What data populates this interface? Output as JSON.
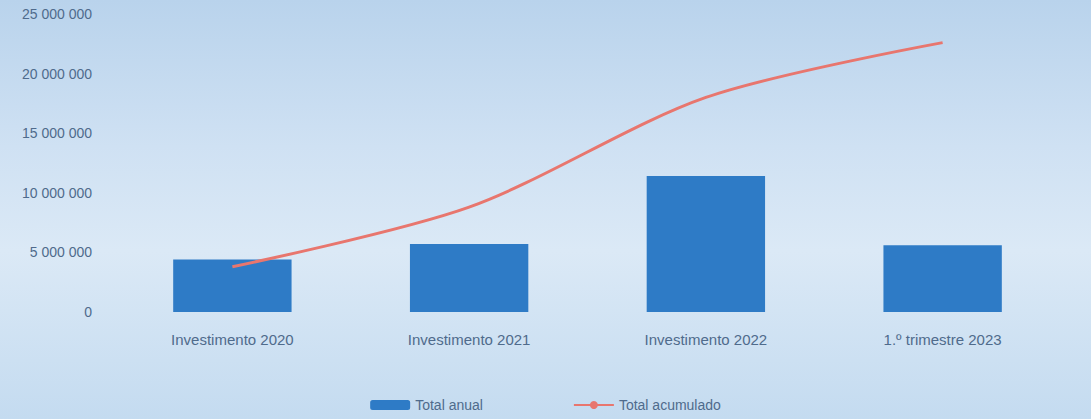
{
  "chart_data": {
    "type": "bar",
    "categories": [
      "Investimento 2020",
      "Investimento 2021",
      "Investimento 2022",
      "1.º trimestre 2023"
    ],
    "series": [
      {
        "name": "Total anual",
        "type": "bar",
        "color": "#2e7bc6",
        "values": [
          4400000,
          5700000,
          11400000,
          5600000
        ]
      },
      {
        "name": "Total acumulado",
        "type": "line",
        "color": "#e8766e",
        "line_style": "solid",
        "values": [
          3800000,
          8800000,
          18000000,
          22600000
        ]
      }
    ],
    "ylim": [
      0,
      25000000
    ],
    "yticks": [
      0,
      {
        "value": 5000000,
        "label": "5 000 000"
      },
      {
        "value": 10000000,
        "label": "10 000 000"
      },
      {
        "value": 15000000,
        "label": "15 000 000"
      },
      {
        "value": 20000000,
        "label": "20 000 000"
      },
      {
        "value": 25000000,
        "label": "25 000 000"
      }
    ],
    "grid": false,
    "legend": "bottom"
  }
}
